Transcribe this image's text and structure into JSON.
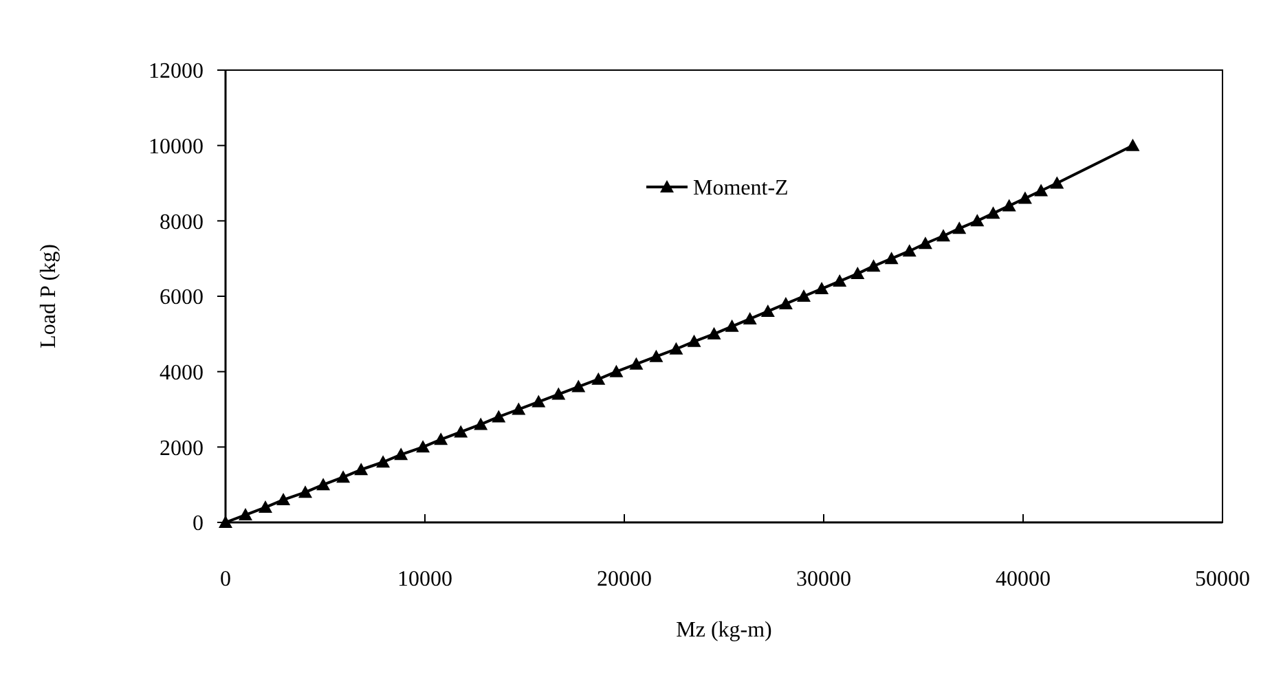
{
  "chart_data": {
    "type": "line",
    "xlabel": "Mz  (kg-m)",
    "ylabel": "Load P (kg)",
    "marker": "triangle",
    "legend": "top",
    "grid": false,
    "xlim": [
      0,
      50000
    ],
    "xticks": [
      0,
      10000,
      20000,
      30000,
      40000,
      50000
    ],
    "ylim": [
      0,
      12000
    ],
    "yticks": [
      0,
      2000,
      4000,
      6000,
      8000,
      10000,
      12000
    ],
    "series": [
      {
        "name": "Moment-Z",
        "color": "#000000",
        "x": [
          0,
          1000,
          2000,
          2900,
          4000,
          4900,
          5900,
          6800,
          7900,
          8800,
          9900,
          10800,
          11800,
          12800,
          13700,
          14700,
          15700,
          16700,
          17700,
          18700,
          19600,
          20600,
          21600,
          22600,
          23500,
          24500,
          25400,
          26300,
          27200,
          28100,
          29000,
          29900,
          30800,
          31700,
          32500,
          33400,
          34300,
          35100,
          36000,
          36800,
          37700,
          38500,
          39300,
          40100,
          40900,
          41700,
          45500
        ],
        "values": [
          0,
          200,
          400,
          600,
          800,
          1000,
          1200,
          1400,
          1600,
          1800,
          2000,
          2200,
          2400,
          2600,
          2800,
          3000,
          3200,
          3400,
          3600,
          3800,
          4000,
          4200,
          4400,
          4600,
          4800,
          5000,
          5200,
          5400,
          5600,
          5800,
          6000,
          6200,
          6400,
          6600,
          6800,
          7000,
          7200,
          7400,
          7600,
          7800,
          8000,
          8200,
          8400,
          8600,
          8800,
          9000,
          10000
        ]
      }
    ]
  }
}
